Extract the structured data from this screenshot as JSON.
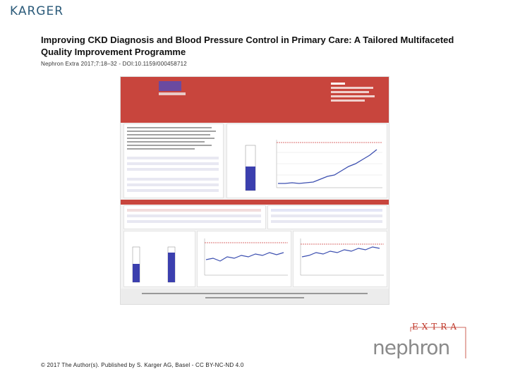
{
  "header": {
    "publisher": "KARGER",
    "title": "Improving CKD Diagnosis and Blood Pressure Control in Primary Care: A Tailored Multifaceted Quality Improvement Programme",
    "citation": "Nephron Extra 2017;7:18–32 - DOI:10.1159/000458712"
  },
  "figure": {
    "colors": {
      "header": "#c8453d",
      "series": "#3c4fb0",
      "bar": "#3b3fae"
    }
  },
  "footer": {
    "copyright": "© 2017 The Author(s). Published by S. Karger AG, Basel - CC BY-NC-ND 4.0",
    "journal_logo_extra": "EXTRA",
    "journal_logo_name": "nephron"
  }
}
